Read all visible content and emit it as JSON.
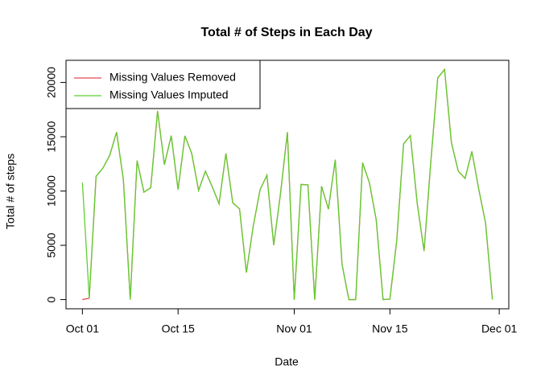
{
  "chart_data": {
    "type": "line",
    "title": "Total # of Steps in Each Day",
    "x_label": "Date",
    "y_label": "Total # of steps",
    "x": [
      "Oct 01",
      "Oct 02",
      "Oct 03",
      "Oct 04",
      "Oct 05",
      "Oct 06",
      "Oct 07",
      "Oct 08",
      "Oct 09",
      "Oct 10",
      "Oct 11",
      "Oct 12",
      "Oct 13",
      "Oct 14",
      "Oct 15",
      "Oct 16",
      "Oct 17",
      "Oct 18",
      "Oct 19",
      "Oct 20",
      "Oct 21",
      "Oct 22",
      "Oct 23",
      "Oct 24",
      "Oct 25",
      "Oct 26",
      "Oct 27",
      "Oct 28",
      "Oct 29",
      "Oct 30",
      "Oct 31",
      "Nov 01",
      "Nov 02",
      "Nov 03",
      "Nov 04",
      "Nov 05",
      "Nov 06",
      "Nov 07",
      "Nov 08",
      "Nov 09",
      "Nov 10",
      "Nov 11",
      "Nov 12",
      "Nov 13",
      "Nov 14",
      "Nov 15",
      "Nov 16",
      "Nov 17",
      "Nov 18",
      "Nov 19",
      "Nov 20",
      "Nov 21",
      "Nov 22",
      "Nov 23",
      "Nov 24",
      "Nov 25",
      "Nov 26",
      "Nov 27",
      "Nov 28",
      "Nov 29",
      "Nov 30"
    ],
    "series": [
      {
        "name": "Missing Values Removed",
        "color": "#e8474f",
        "values": [
          0,
          126,
          11352,
          12116,
          13294,
          15420,
          11015,
          0,
          12811,
          9900,
          10304,
          17382,
          12426,
          15098,
          10139,
          15084,
          13452,
          10056,
          11829,
          10395,
          8821,
          13460,
          8918,
          8355,
          2492,
          6778,
          10119,
          11458,
          5018,
          9819,
          15414,
          0,
          10600,
          10571,
          0,
          10439,
          8334,
          12883,
          3219,
          0,
          0,
          12608,
          10765,
          7336,
          0,
          41,
          5441,
          14339,
          15110,
          8841,
          4472,
          12787,
          20427,
          21194,
          14478,
          11834,
          11162,
          13646,
          10183,
          7047,
          0
        ]
      },
      {
        "name": "Missing Values Imputed",
        "color": "#5fcf2f",
        "values": [
          10766,
          126,
          11352,
          12116,
          13294,
          15420,
          11015,
          0,
          12811,
          9900,
          10304,
          17382,
          12426,
          15098,
          10139,
          15084,
          13452,
          10056,
          11829,
          10395,
          8821,
          13460,
          8918,
          8355,
          2492,
          6778,
          10119,
          11458,
          5018,
          9819,
          15414,
          0,
          10600,
          10571,
          0,
          10439,
          8334,
          12883,
          3219,
          0,
          0,
          12608,
          10765,
          7336,
          0,
          41,
          5441,
          14339,
          15110,
          8841,
          4472,
          12787,
          20427,
          21194,
          14478,
          11834,
          11162,
          13646,
          10183,
          7047,
          0
        ]
      }
    ],
    "xticks": [
      "Oct 01",
      "Oct 15",
      "Nov 01",
      "Nov 15",
      "Dec 01"
    ],
    "ylim": [
      -848,
      22042
    ],
    "yticks": [
      0,
      5000,
      10000,
      15000,
      20000
    ],
    "legend": "top-left"
  }
}
